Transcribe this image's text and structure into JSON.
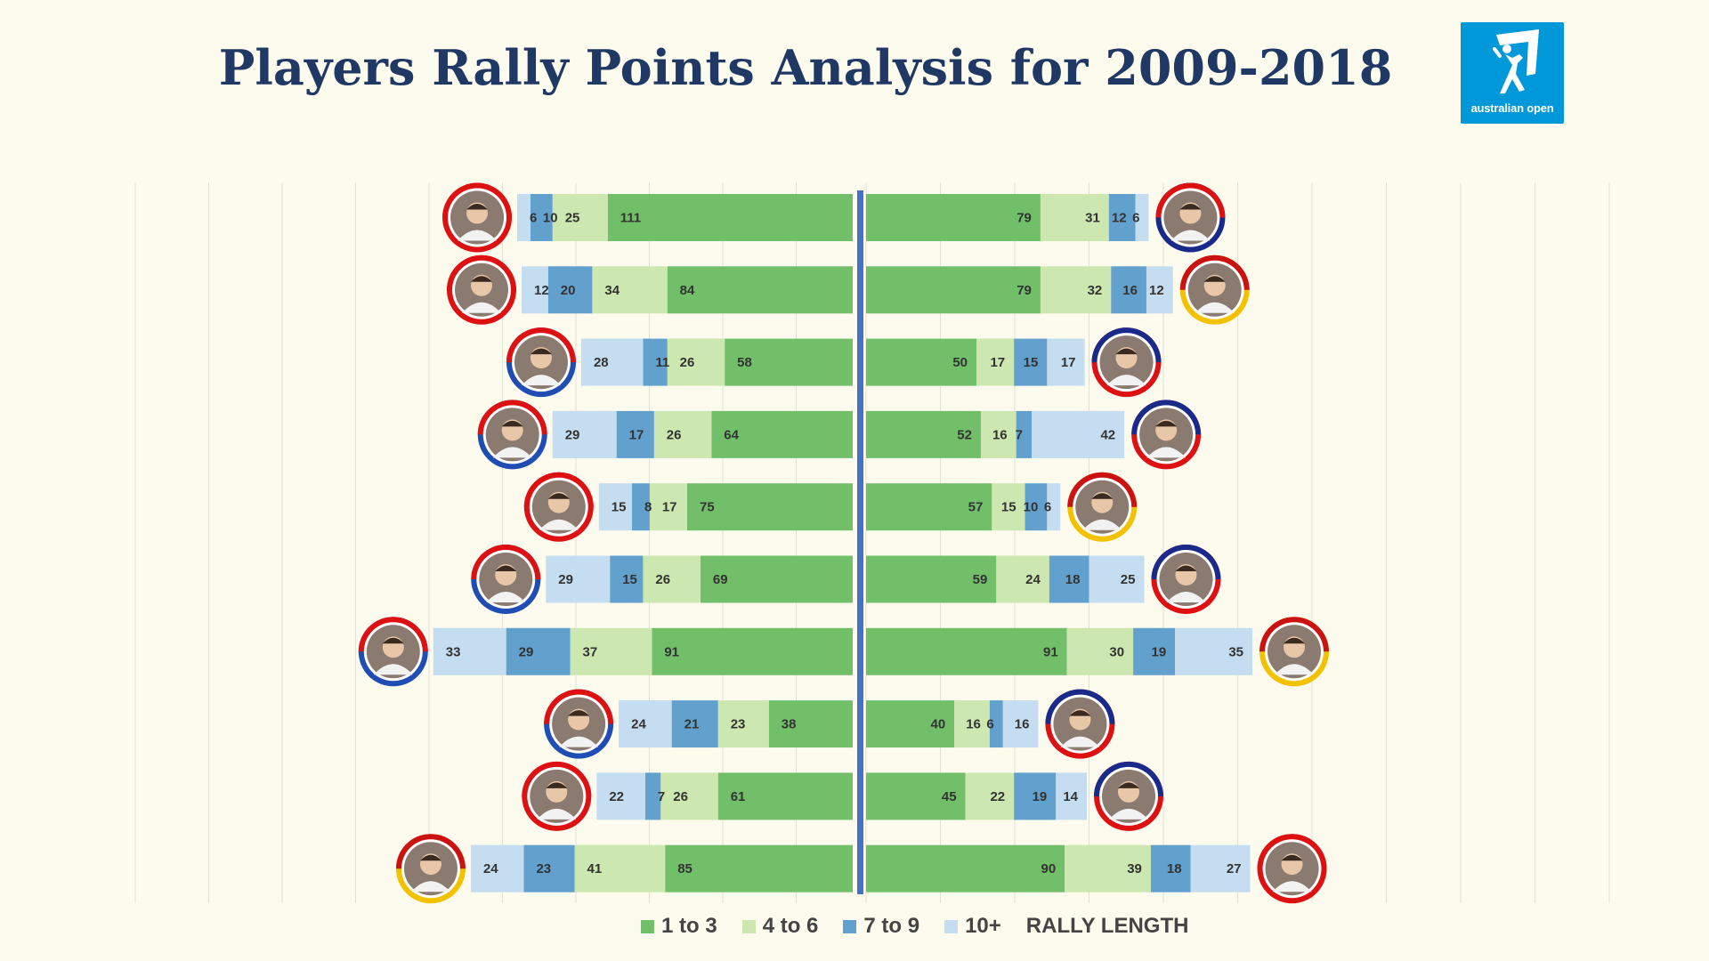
{
  "title": "Players Rally Points Analysis for 2009-2018",
  "logo": {
    "text": "australian open",
    "color": "#0098d8"
  },
  "colors": {
    "c1to3": "#72bf6a",
    "c4to6": "#cce8b0",
    "c7to9": "#62a0ce",
    "c10plus": "#c5ddf0",
    "axis": "#4472c4"
  },
  "chart_data": {
    "type": "bar",
    "orientation": "horizontal-diverging",
    "legend_title": "RALLY LENGTH",
    "legend_placement": "bottom",
    "series": [
      {
        "name": "1 to 3",
        "color": "#72bf6a"
      },
      {
        "name": "4 to 6",
        "color": "#cce8b0"
      },
      {
        "name": "7 to 9",
        "color": "#62a0ce"
      },
      {
        "name": "10+",
        "color": "#c5ddf0"
      }
    ],
    "grid": true,
    "rows": [
      {
        "left": [
          111,
          25,
          10,
          6
        ],
        "right": [
          79,
          31,
          12,
          6
        ]
      },
      {
        "left": [
          84,
          34,
          20,
          12
        ],
        "right": [
          79,
          32,
          16,
          12
        ]
      },
      {
        "left": [
          58,
          26,
          11,
          28
        ],
        "right": [
          50,
          17,
          15,
          17
        ]
      },
      {
        "left": [
          64,
          26,
          17,
          29
        ],
        "right": [
          52,
          16,
          7,
          42
        ]
      },
      {
        "left": [
          75,
          17,
          8,
          15
        ],
        "right": [
          57,
          15,
          10,
          6
        ]
      },
      {
        "left": [
          69,
          26,
          15,
          29
        ],
        "right": [
          59,
          24,
          18,
          25
        ]
      },
      {
        "left": [
          91,
          37,
          29,
          33
        ],
        "right": [
          91,
          30,
          19,
          35
        ]
      },
      {
        "left": [
          38,
          23,
          21,
          24
        ],
        "right": [
          40,
          16,
          6,
          16
        ]
      },
      {
        "left": [
          61,
          26,
          7,
          22
        ],
        "right": [
          45,
          22,
          19,
          14
        ]
      },
      {
        "left": [
          85,
          41,
          23,
          24
        ],
        "right": [
          90,
          39,
          18,
          27
        ]
      }
    ],
    "players": [
      {
        "left_badge": "player-photo-icon",
        "left_ring": [
          "#dd1111",
          "#dd1111"
        ],
        "right_badge": "player-photo-icon",
        "right_ring": [
          "#dd1111",
          "#1a2a8a"
        ]
      },
      {
        "left_badge": "player-photo-icon",
        "left_ring": [
          "#dd1111",
          "#dd1111"
        ],
        "right_badge": "player-photo-icon",
        "right_ring": [
          "#cc1111",
          "#f2c200"
        ]
      },
      {
        "left_badge": "player-photo-icon",
        "left_ring": [
          "#dd1111",
          "#1f4db3"
        ],
        "right_badge": "player-photo-icon",
        "right_ring": [
          "#1a2a8a",
          "#dd1111"
        ]
      },
      {
        "left_badge": "player-photo-icon",
        "left_ring": [
          "#dd1111",
          "#1f4db3"
        ],
        "right_badge": "player-photo-icon",
        "right_ring": [
          "#1a2a8a",
          "#dd1111"
        ]
      },
      {
        "left_badge": "player-photo-icon",
        "left_ring": [
          "#dd1111",
          "#dd1111"
        ],
        "right_badge": "player-photo-icon",
        "right_ring": [
          "#cc1111",
          "#f2c200"
        ]
      },
      {
        "left_badge": "player-photo-icon",
        "left_ring": [
          "#dd1111",
          "#1f4db3"
        ],
        "right_badge": "player-photo-icon",
        "right_ring": [
          "#1a2a8a",
          "#dd1111"
        ]
      },
      {
        "left_badge": "player-photo-icon",
        "left_ring": [
          "#dd1111",
          "#1f4db3"
        ],
        "right_badge": "player-photo-icon",
        "right_ring": [
          "#cc1111",
          "#f2c200"
        ]
      },
      {
        "left_badge": "player-photo-icon",
        "left_ring": [
          "#dd1111",
          "#1f4db3"
        ],
        "right_badge": "player-photo-icon",
        "right_ring": [
          "#1a2a8a",
          "#dd1111"
        ]
      },
      {
        "left_badge": "player-photo-icon",
        "left_ring": [
          "#dd1111",
          "#dd1111"
        ],
        "right_badge": "player-photo-icon",
        "right_ring": [
          "#1a2a8a",
          "#dd1111"
        ]
      },
      {
        "left_badge": "player-photo-icon",
        "left_ring": [
          "#cc1111",
          "#f2c200"
        ],
        "right_badge": "player-photo-icon",
        "right_ring": [
          "#dd1111",
          "#dd1111"
        ]
      }
    ]
  }
}
